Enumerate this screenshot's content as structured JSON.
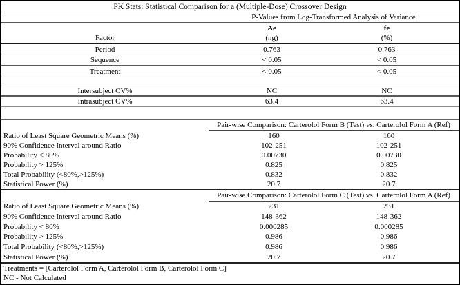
{
  "table": {
    "title": "PK Stats: Statistical Comparison for a (Multiple-Dose) Crossover Design",
    "anova_header": "P-Values from Log-Transformed Analysis of Variance",
    "factor_label": "Factor",
    "columns": [
      {
        "name": "Ae",
        "unit": "(ng)"
      },
      {
        "name": "fe",
        "unit": "(%)"
      }
    ],
    "factor_rows": [
      {
        "label": "Period",
        "ae": "0.763",
        "fe": "0.763"
      },
      {
        "label": "Sequence",
        "ae": "< 0.05",
        "fe": "< 0.05"
      },
      {
        "label": "Treatment",
        "ae": "< 0.05",
        "fe": "< 0.05"
      }
    ],
    "cv_rows": [
      {
        "label": "Intersubject CV%",
        "ae": "NC",
        "fe": "NC"
      },
      {
        "label": "Intrasubject CV%",
        "ae": "63.4",
        "fe": "63.4"
      }
    ],
    "comparisons": [
      {
        "header": "Pair-wise Comparison: Carterolol Form B (Test) vs. Carterolol Form A (Ref)",
        "rows": [
          {
            "label": "Ratio of Least Square Geometric Means (%)",
            "ae": "160",
            "fe": "160"
          },
          {
            "label": "90% Confidence Interval around Ratio",
            "ae": "102-251",
            "fe": "102-251"
          },
          {
            "label": "Probability < 80%",
            "ae": "0.00730",
            "fe": "0.00730"
          },
          {
            "label": "Probability > 125%",
            "ae": "0.825",
            "fe": "0.825"
          },
          {
            "label": "Total Probability (<80%,>125%)",
            "ae": "0.832",
            "fe": "0.832"
          },
          {
            "label": "Statistical Power (%)",
            "ae": "20.7",
            "fe": "20.7"
          }
        ]
      },
      {
        "header": "Pair-wise Comparison: Carterolol Form C (Test) vs. Carterolol Form A (Ref)",
        "rows": [
          {
            "label": "Ratio of Least Square Geometric Means (%)",
            "ae": "231",
            "fe": "231"
          },
          {
            "label": "90% Confidence Interval around Ratio",
            "ae": "148-362",
            "fe": "148-362"
          },
          {
            "label": "Probability < 80%",
            "ae": "0.000285",
            "fe": "0.000285"
          },
          {
            "label": "Probability > 125%",
            "ae": "0.986",
            "fe": "0.986"
          },
          {
            "label": "Total Probability (<80%,>125%)",
            "ae": "0.986",
            "fe": "0.986"
          },
          {
            "label": "Statistical Power (%)",
            "ae": "20.7",
            "fe": "20.7"
          }
        ]
      }
    ],
    "footnotes": [
      "Treatments = [Carterolol Form A, Carterolol Form B, Carterolol Form C]",
      "NC - Not Calculated"
    ]
  }
}
